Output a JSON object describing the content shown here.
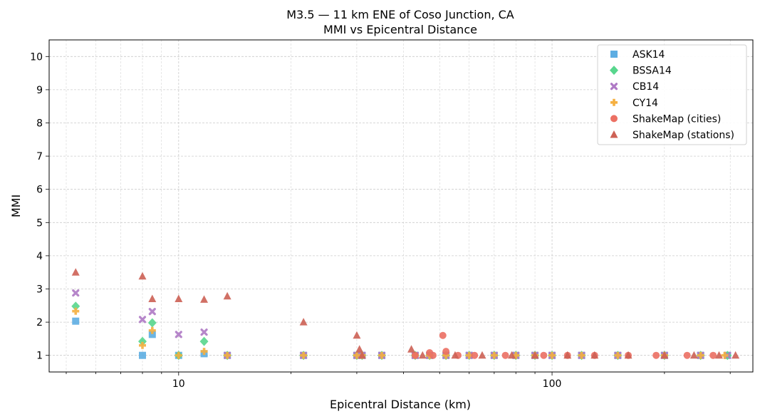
{
  "chart_data": {
    "type": "scatter",
    "title": "M3.5 — 11 km ENE of Coso Junction, CA",
    "subtitle": "MMI vs Epicentral Distance",
    "xlabel": "Epicentral Distance (km)",
    "ylabel": "MMI",
    "x_scale": "log",
    "xlim": [
      4.5,
      345
    ],
    "ylim": [
      0.5,
      10.5
    ],
    "x_ticks": [
      10,
      100
    ],
    "x_tick_labels": [
      "10",
      "100"
    ],
    "y_ticks": [
      1,
      2,
      3,
      4,
      5,
      6,
      7,
      8,
      9,
      10
    ],
    "y_tick_labels": [
      "1",
      "2",
      "3",
      "4",
      "5",
      "6",
      "7",
      "8",
      "9",
      "10"
    ],
    "grid": true,
    "legend_position": "top-right",
    "series": [
      {
        "name": "ASK14",
        "marker": "square",
        "color": "#5dade2",
        "points": [
          [
            5.3,
            2.03
          ],
          [
            8.0,
            1.0
          ],
          [
            8.5,
            1.63
          ],
          [
            10.0,
            1.0
          ],
          [
            11.7,
            1.05
          ],
          [
            13.5,
            1.0
          ],
          [
            21.6,
            1.0
          ],
          [
            30.0,
            1.0
          ],
          [
            31.0,
            1.0
          ],
          [
            35.0,
            1.0
          ],
          [
            43.0,
            1.0
          ],
          [
            47.0,
            1.0
          ],
          [
            52.0,
            1.0
          ],
          [
            60.0,
            1.0
          ],
          [
            70.0,
            1.0
          ],
          [
            80.0,
            1.0
          ],
          [
            90.0,
            1.0
          ],
          [
            100.0,
            1.0
          ],
          [
            120.0,
            1.0
          ],
          [
            150.0,
            1.0
          ],
          [
            200.0,
            1.0
          ],
          [
            250.0,
            1.0
          ],
          [
            295.0,
            1.0
          ]
        ]
      },
      {
        "name": "BSSA14",
        "marker": "diamond",
        "color": "#58d68d",
        "points": [
          [
            5.3,
            2.48
          ],
          [
            8.0,
            1.42
          ],
          [
            8.5,
            1.98
          ],
          [
            10.0,
            1.0
          ],
          [
            11.7,
            1.42
          ],
          [
            13.5,
            1.0
          ],
          [
            21.6,
            1.0
          ],
          [
            30.0,
            1.0
          ],
          [
            31.0,
            1.0
          ],
          [
            35.0,
            1.0
          ],
          [
            43.0,
            1.0
          ],
          [
            47.0,
            1.0
          ],
          [
            52.0,
            1.0
          ],
          [
            60.0,
            1.0
          ],
          [
            70.0,
            1.0
          ],
          [
            80.0,
            1.0
          ],
          [
            90.0,
            1.0
          ],
          [
            100.0,
            1.0
          ],
          [
            120.0,
            1.0
          ],
          [
            150.0,
            1.0
          ],
          [
            200.0,
            1.0
          ],
          [
            250.0,
            1.0
          ],
          [
            295.0,
            1.0
          ]
        ]
      },
      {
        "name": "CB14",
        "marker": "x",
        "color": "#af7ac5",
        "points": [
          [
            5.3,
            2.88
          ],
          [
            8.0,
            2.08
          ],
          [
            8.5,
            2.32
          ],
          [
            10.0,
            1.63
          ],
          [
            11.7,
            1.7
          ],
          [
            13.5,
            1.0
          ],
          [
            21.6,
            1.0
          ],
          [
            30.0,
            1.0
          ],
          [
            31.0,
            1.0
          ],
          [
            35.0,
            1.0
          ],
          [
            43.0,
            1.0
          ],
          [
            47.0,
            1.0
          ],
          [
            52.0,
            1.0
          ],
          [
            60.0,
            1.0
          ],
          [
            70.0,
            1.0
          ],
          [
            80.0,
            1.0
          ],
          [
            90.0,
            1.0
          ],
          [
            100.0,
            1.0
          ],
          [
            120.0,
            1.0
          ],
          [
            150.0,
            1.0
          ],
          [
            200.0,
            1.0
          ],
          [
            250.0,
            1.0
          ],
          [
            295.0,
            1.0
          ]
        ]
      },
      {
        "name": "CY14",
        "marker": "plus",
        "color": "#f5b041",
        "points": [
          [
            5.3,
            2.33
          ],
          [
            8.0,
            1.3
          ],
          [
            8.5,
            1.75
          ],
          [
            10.0,
            1.0
          ],
          [
            11.7,
            1.12
          ],
          [
            13.5,
            1.0
          ],
          [
            21.6,
            1.0
          ],
          [
            30.0,
            1.0
          ],
          [
            31.0,
            1.0
          ],
          [
            35.0,
            1.0
          ],
          [
            43.0,
            1.0
          ],
          [
            47.0,
            1.0
          ],
          [
            52.0,
            1.0
          ],
          [
            60.0,
            1.0
          ],
          [
            70.0,
            1.0
          ],
          [
            80.0,
            1.0
          ],
          [
            90.0,
            1.0
          ],
          [
            100.0,
            1.0
          ],
          [
            120.0,
            1.0
          ],
          [
            150.0,
            1.0
          ],
          [
            200.0,
            1.0
          ],
          [
            250.0,
            1.0
          ],
          [
            290.0,
            1.0
          ]
        ]
      },
      {
        "name": "ShakeMap (cities)",
        "marker": "circle",
        "color": "#ec7063",
        "points": [
          [
            43.0,
            1.0
          ],
          [
            47.0,
            1.08
          ],
          [
            48.0,
            1.0
          ],
          [
            51.0,
            1.6
          ],
          [
            52.0,
            1.12
          ],
          [
            56.0,
            1.0
          ],
          [
            62.0,
            1.0
          ],
          [
            75.0,
            1.0
          ],
          [
            95.0,
            1.0
          ],
          [
            110.0,
            1.0
          ],
          [
            130.0,
            1.0
          ],
          [
            160.0,
            1.0
          ],
          [
            190.0,
            1.0
          ],
          [
            230.0,
            1.0
          ],
          [
            270.0,
            1.0
          ]
        ]
      },
      {
        "name": "ShakeMap (stations)",
        "marker": "triangle",
        "color": "#cd6155",
        "points": [
          [
            5.3,
            3.5
          ],
          [
            8.0,
            3.38
          ],
          [
            8.5,
            2.7
          ],
          [
            10.0,
            2.7
          ],
          [
            11.7,
            2.68
          ],
          [
            13.5,
            2.78
          ],
          [
            21.6,
            2.0
          ],
          [
            30.0,
            1.6
          ],
          [
            30.5,
            1.18
          ],
          [
            31.0,
            1.0
          ],
          [
            42.0,
            1.18
          ],
          [
            45.0,
            1.0
          ],
          [
            55.0,
            1.0
          ],
          [
            65.0,
            1.0
          ],
          [
            78.0,
            1.0
          ],
          [
            90.0,
            1.0
          ],
          [
            110.0,
            1.0
          ],
          [
            130.0,
            1.0
          ],
          [
            160.0,
            1.0
          ],
          [
            200.0,
            1.0
          ],
          [
            240.0,
            1.0
          ],
          [
            280.0,
            1.0
          ],
          [
            310.0,
            1.0
          ]
        ]
      }
    ]
  }
}
